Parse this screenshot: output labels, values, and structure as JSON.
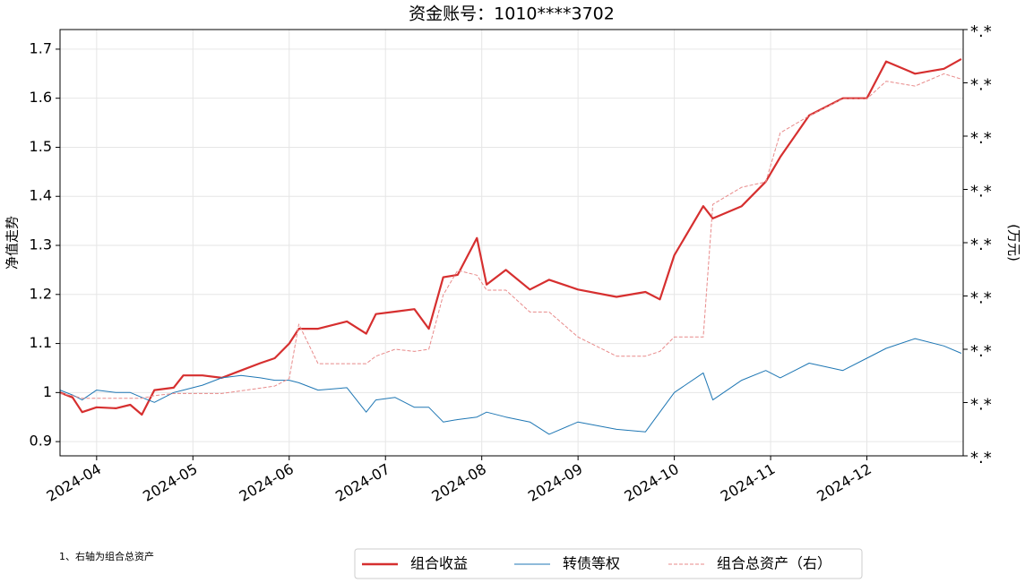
{
  "chart_data": {
    "type": "line",
    "title": "资金账号：1010****3702",
    "ylabel": "净值走势",
    "y2label": "(万元)",
    "footnote": "1、右轴为组合总资产",
    "x": [
      3.62,
      3.75,
      3.85,
      4.0,
      4.2,
      4.35,
      4.47,
      4.6,
      4.8,
      4.9,
      5.1,
      5.3,
      5.5,
      5.7,
      5.85,
      6.0,
      6.1,
      6.3,
      6.6,
      6.8,
      6.9,
      7.1,
      7.3,
      7.45,
      7.6,
      7.75,
      7.95,
      8.05,
      8.25,
      8.5,
      8.7,
      9.0,
      9.4,
      9.7,
      9.85,
      10.0,
      10.3,
      10.4,
      10.7,
      10.95,
      11.1,
      11.4,
      11.75,
      12.0,
      12.2,
      12.5,
      12.8,
      12.98
    ],
    "xlim": [
      3.62,
      13.0
    ],
    "xticks": [
      {
        "value": 4,
        "label": "2024-04"
      },
      {
        "value": 5,
        "label": "2024-05"
      },
      {
        "value": 6,
        "label": "2024-06"
      },
      {
        "value": 7,
        "label": "2024-07"
      },
      {
        "value": 8,
        "label": "2024-08"
      },
      {
        "value": 9,
        "label": "2024-09"
      },
      {
        "value": 10,
        "label": "2024-10"
      },
      {
        "value": 11,
        "label": "2024-11"
      },
      {
        "value": 12,
        "label": "2024-12"
      }
    ],
    "ylim": [
      0.871,
      1.74
    ],
    "yticks": [
      0.9,
      1.0,
      1.1,
      1.2,
      1.3,
      1.4,
      1.5,
      1.6,
      1.7
    ],
    "y2lim": [
      0,
      8
    ],
    "y2ticks": [
      {
        "value": 0,
        "label": "*.*"
      },
      {
        "value": 1,
        "label": "*.*"
      },
      {
        "value": 2,
        "label": "*.*"
      },
      {
        "value": 3,
        "label": "*.*"
      },
      {
        "value": 4,
        "label": "*.*"
      },
      {
        "value": 5,
        "label": "*.*"
      },
      {
        "value": 6,
        "label": "*.*"
      },
      {
        "value": 7,
        "label": "*.*"
      },
      {
        "value": 8,
        "label": "*.*"
      }
    ],
    "grid": true,
    "legend": "bottom",
    "series": [
      {
        "name": "组合收益",
        "color": "#d62f2f",
        "linestyle": "solid",
        "values": [
          1.0,
          0.99,
          0.96,
          0.97,
          0.968,
          0.975,
          0.955,
          1.005,
          1.01,
          1.035,
          1.035,
          1.03,
          1.045,
          1.06,
          1.07,
          1.1,
          1.13,
          1.13,
          1.145,
          1.12,
          1.16,
          1.165,
          1.17,
          1.13,
          1.235,
          1.24,
          1.315,
          1.22,
          1.25,
          1.21,
          1.23,
          1.21,
          1.195,
          1.205,
          1.19,
          1.28,
          1.38,
          1.355,
          1.38,
          1.43,
          1.48,
          1.565,
          1.6,
          1.6,
          1.675,
          1.65,
          1.66,
          1.68
        ]
      },
      {
        "name": "转债等权",
        "color": "#1f77b4",
        "linestyle": "solid",
        "values": [
          1.005,
          0.995,
          0.985,
          1.005,
          1.0,
          1.0,
          0.99,
          0.98,
          1.0,
          1.005,
          1.015,
          1.03,
          1.035,
          1.03,
          1.025,
          1.025,
          1.02,
          1.005,
          1.01,
          0.96,
          0.985,
          0.99,
          0.97,
          0.97,
          0.94,
          0.945,
          0.95,
          0.96,
          0.95,
          0.94,
          0.915,
          0.94,
          0.925,
          0.92,
          0.96,
          1.0,
          1.04,
          0.985,
          1.025,
          1.045,
          1.03,
          1.06,
          1.045,
          1.07,
          1.09,
          1.11,
          1.095,
          1.08
        ]
      },
      {
        "name": "组合总资产（右）",
        "color": "#e88a8a",
        "linestyle": "dashed",
        "axis": "y2",
        "values": [
          1.17,
          1.13,
          1.08,
          1.08,
          1.08,
          1.08,
          1.08,
          1.13,
          1.17,
          1.17,
          1.17,
          1.17,
          1.22,
          1.27,
          1.31,
          1.45,
          2.47,
          1.73,
          1.73,
          1.73,
          1.87,
          2.0,
          1.96,
          2.0,
          3.02,
          3.48,
          3.39,
          3.11,
          3.11,
          2.7,
          2.7,
          2.23,
          1.87,
          1.87,
          1.96,
          2.23,
          2.23,
          4.72,
          5.04,
          5.14,
          6.06,
          6.38,
          6.7,
          6.7,
          7.03,
          6.94,
          7.17,
          7.07
        ]
      }
    ]
  }
}
